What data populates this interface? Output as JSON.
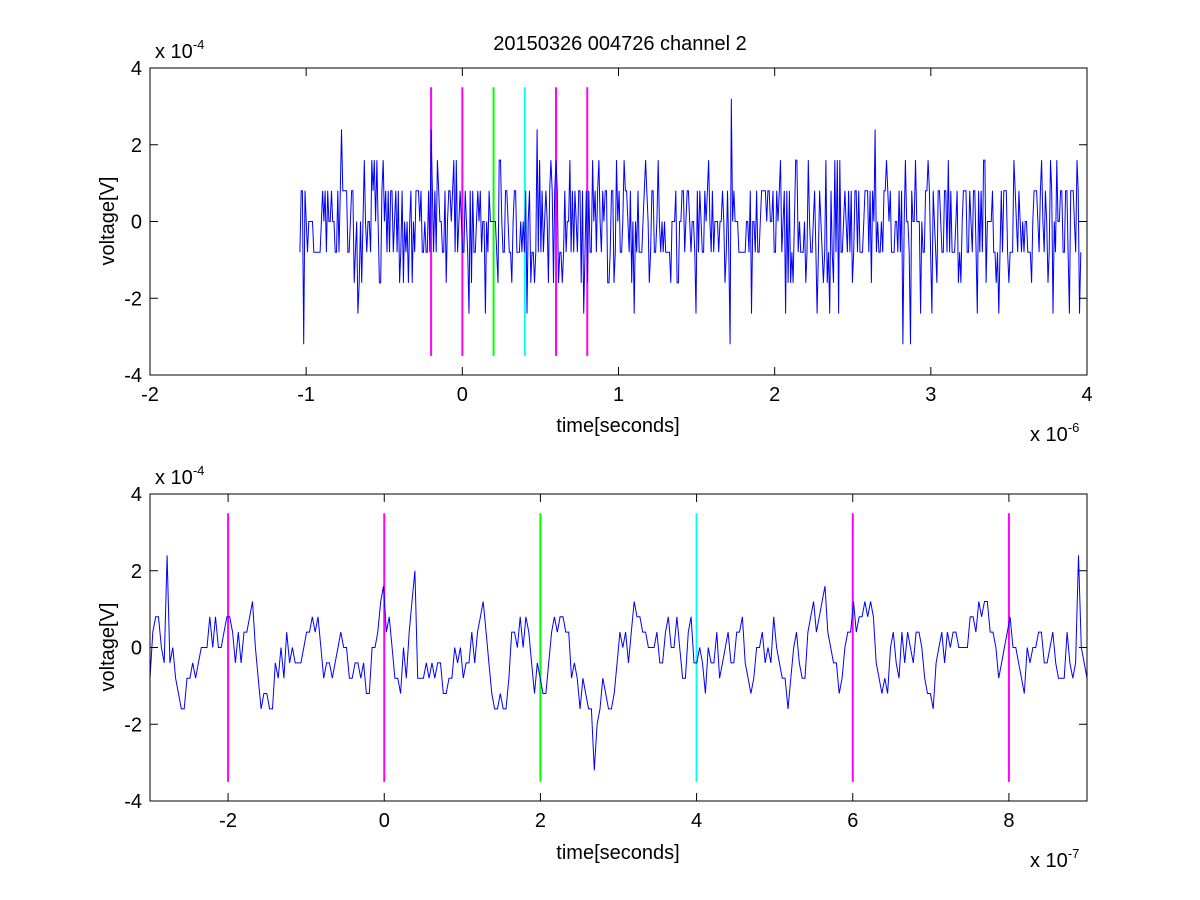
{
  "figure_title": "20150326 004726 channel 2",
  "colors": {
    "signal": "#0000ff",
    "marker_magenta": "#ff00ff",
    "marker_green": "#00ff00",
    "marker_cyan": "#00ffff",
    "axes": "#000000",
    "background": "#ffffff"
  },
  "chart_data": [
    {
      "type": "line",
      "title": "20150326 004726 channel 2",
      "xlabel": "time[seconds]",
      "ylabel": "voltage[V]",
      "x_exponent_label": "x 10",
      "x_exponent": "-6",
      "y_exponent_label": "x 10",
      "y_exponent": "-4",
      "xlim": [
        -2,
        4
      ],
      "ylim": [
        -4,
        4
      ],
      "x_ticks": [
        -2,
        -1,
        0,
        1,
        2,
        3,
        4
      ],
      "x_tick_labels": [
        "-2",
        "-1",
        "0",
        "1",
        "2",
        "3",
        "4"
      ],
      "y_ticks": [
        -4,
        -2,
        0,
        2,
        4
      ],
      "y_tick_labels": [
        "-4",
        "-2",
        "0",
        "2",
        "4"
      ],
      "grid": false,
      "signal": {
        "description_units": "time in 1e-6 s, voltage in 1e-4 V, quantization step 0.8e-4 V",
        "x_start": -1.04,
        "x_end": 3.96,
        "levels": [
          -3.2,
          3.2
        ],
        "step": 0.8
      },
      "markers": [
        {
          "x": -0.2,
          "color": "magenta",
          "y_min": -3.5,
          "y_max": 3.5
        },
        {
          "x": 0.0,
          "color": "magenta",
          "y_min": -3.5,
          "y_max": 3.5
        },
        {
          "x": 0.2,
          "color": "green",
          "y_min": -3.5,
          "y_max": 3.5
        },
        {
          "x": 0.4,
          "color": "cyan",
          "y_min": -3.5,
          "y_max": 3.5
        },
        {
          "x": 0.6,
          "color": "magenta",
          "y_min": -3.5,
          "y_max": 3.5
        },
        {
          "x": 0.8,
          "color": "magenta",
          "y_min": -3.5,
          "y_max": 3.5
        }
      ]
    },
    {
      "type": "line",
      "title": "",
      "xlabel": "time[seconds]",
      "ylabel": "voltage[V]",
      "x_exponent_label": "x 10",
      "x_exponent": "-7",
      "y_exponent_label": "x 10",
      "y_exponent": "-4",
      "xlim": [
        -3,
        9
      ],
      "ylim": [
        -4,
        4
      ],
      "x_ticks": [
        -2,
        0,
        2,
        4,
        6,
        8
      ],
      "x_tick_labels": [
        "-2",
        "0",
        "2",
        "4",
        "6",
        "8"
      ],
      "y_ticks": [
        -4,
        -2,
        0,
        2,
        4
      ],
      "y_tick_labels": [
        "-4",
        "-2",
        "0",
        "2",
        "4"
      ],
      "grid": false,
      "signal": {
        "description_units": "time in 1e-7 s, voltage in 1e-4 V",
        "x_start": -3.0,
        "x_end": 9.0,
        "levels": [
          -3.2,
          2.4
        ],
        "step": 0.4
      },
      "markers": [
        {
          "x": -2,
          "color": "magenta",
          "y_min": -3.5,
          "y_max": 3.5
        },
        {
          "x": 0,
          "color": "magenta",
          "y_min": -3.5,
          "y_max": 3.5
        },
        {
          "x": 2,
          "color": "green",
          "y_min": -3.5,
          "y_max": 3.5
        },
        {
          "x": 4,
          "color": "cyan",
          "y_min": -3.5,
          "y_max": 3.5
        },
        {
          "x": 6,
          "color": "magenta",
          "y_min": -3.5,
          "y_max": 3.5
        },
        {
          "x": 8,
          "color": "magenta",
          "y_min": -3.5,
          "y_max": 3.5
        }
      ]
    }
  ]
}
